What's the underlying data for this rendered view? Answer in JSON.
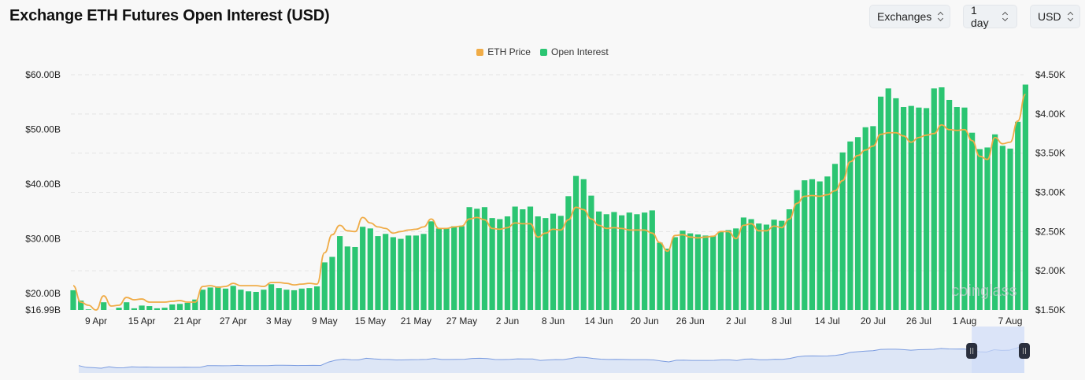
{
  "header": {
    "title": "Exchange ETH Futures Open Interest (USD)",
    "selects": [
      {
        "label": "Exchanges"
      },
      {
        "label": "1 day"
      },
      {
        "label": "USD"
      }
    ]
  },
  "watermark": "coinglass",
  "colors": {
    "open_interest": "#2bc572",
    "eth_price": "#f0ac47",
    "navigator_fill": "#dde6f6",
    "navigator_line": "#7b9ce0",
    "navigator_selection": "#cfdcf8",
    "handle": "#2a2f3d"
  },
  "chart_data": {
    "type": "bar+line",
    "title": "Exchange ETH Futures Open Interest (USD)",
    "x_start": "6 Apr",
    "x_end": "9 Aug",
    "interval": "1 day",
    "x_ticks": [
      "9 Apr",
      "15 Apr",
      "21 Apr",
      "27 Apr",
      "3 May",
      "9 May",
      "15 May",
      "21 May",
      "27 May",
      "2 Jun",
      "8 Jun",
      "14 Jun",
      "20 Jun",
      "26 Jun",
      "2 Jul",
      "8 Jul",
      "14 Jul",
      "20 Jul",
      "26 Jul",
      "1 Aug",
      "7 Aug"
    ],
    "y_left": {
      "ticks": [
        "$60.00B",
        "$50.00B",
        "$40.00B",
        "$30.00B",
        "$20.00B",
        "$16.99B"
      ],
      "range": [
        16.99,
        60
      ],
      "unit": "USD billions"
    },
    "y_right": {
      "ticks": [
        "$4.50K",
        "$4.00K",
        "$3.50K",
        "$3.00K",
        "$2.50K",
        "$2.00K",
        "$1.50K"
      ],
      "range": [
        1.5,
        4.5
      ],
      "unit": "USD thousands"
    },
    "grid": true,
    "legend_position": "top-center",
    "series": [
      {
        "name": "ETH Price",
        "type": "line",
        "axis": "right",
        "values": [
          1.81,
          1.6,
          1.56,
          1.5,
          1.68,
          1.55,
          1.56,
          1.66,
          1.63,
          1.64,
          1.6,
          1.6,
          1.6,
          1.61,
          1.62,
          1.6,
          1.6,
          1.8,
          1.81,
          1.79,
          1.8,
          1.84,
          1.81,
          1.81,
          1.81,
          1.8,
          1.85,
          1.85,
          1.84,
          1.82,
          1.83,
          1.84,
          1.83,
          2.23,
          2.46,
          2.58,
          2.51,
          2.5,
          2.68,
          2.61,
          2.56,
          2.54,
          2.48,
          2.5,
          2.52,
          2.53,
          2.56,
          2.66,
          2.54,
          2.54,
          2.56,
          2.57,
          2.66,
          2.68,
          2.65,
          2.54,
          2.53,
          2.55,
          2.61,
          2.6,
          2.6,
          2.43,
          2.48,
          2.53,
          2.52,
          2.65,
          2.81,
          2.78,
          2.66,
          2.58,
          2.54,
          2.55,
          2.54,
          2.52,
          2.52,
          2.52,
          2.48,
          2.36,
          2.25,
          2.45,
          2.46,
          2.43,
          2.42,
          2.43,
          2.44,
          2.5,
          2.5,
          2.41,
          2.58,
          2.6,
          2.51,
          2.51,
          2.57,
          2.55,
          2.66,
          2.86,
          2.95,
          2.96,
          2.95,
          2.97,
          3.02,
          3.15,
          3.39,
          3.47,
          3.54,
          3.59,
          3.74,
          3.76,
          3.76,
          3.72,
          3.64,
          3.7,
          3.73,
          3.75,
          3.86,
          3.8,
          3.79,
          3.8,
          3.66,
          3.46,
          3.42,
          3.7,
          3.62,
          3.64,
          3.91,
          4.25
        ]
      },
      {
        "name": "Open Interest",
        "type": "bar",
        "axis": "left",
        "values": [
          20.6,
          18.7,
          17.1,
          17.0,
          18.4,
          17.0,
          17.4,
          18.4,
          17.3,
          17.8,
          17.7,
          17.3,
          17.4,
          18.0,
          18.1,
          18.3,
          18.9,
          20.7,
          21.1,
          21.3,
          20.9,
          21.4,
          20.7,
          20.4,
          20.3,
          20.7,
          21.7,
          21.0,
          20.7,
          20.6,
          20.9,
          21.0,
          21.3,
          25.7,
          26.7,
          30.5,
          28.6,
          28.5,
          32.2,
          31.9,
          30.5,
          30.9,
          30.3,
          30.0,
          30.6,
          30.6,
          30.9,
          33.2,
          31.9,
          31.9,
          32.3,
          32.3,
          35.8,
          35.5,
          35.8,
          33.8,
          33.6,
          34.1,
          35.9,
          35.4,
          35.9,
          34.1,
          33.8,
          34.6,
          34.2,
          37.8,
          41.5,
          40.9,
          37.9,
          35.0,
          34.5,
          34.9,
          34.3,
          34.8,
          34.5,
          34.8,
          35.2,
          29.3,
          28.2,
          30.3,
          31.5,
          31.0,
          30.8,
          30.6,
          30.5,
          31.3,
          31.6,
          31.9,
          33.9,
          33.6,
          32.8,
          32.6,
          33.5,
          33.3,
          35.4,
          38.9,
          40.7,
          40.9,
          40.5,
          41.4,
          43.7,
          45.8,
          47.8,
          48.6,
          50.4,
          50.6,
          56.0,
          57.5,
          55.7,
          54.1,
          54.3,
          54.0,
          53.9,
          57.5,
          57.7,
          55.4,
          54.1,
          54.0,
          49.4,
          46.4,
          46.7,
          49.1,
          47.0,
          46.5,
          51.4,
          58.2
        ]
      }
    ],
    "navigator": {
      "selected_from": "1 Aug",
      "selected_to": "9 Aug"
    }
  }
}
